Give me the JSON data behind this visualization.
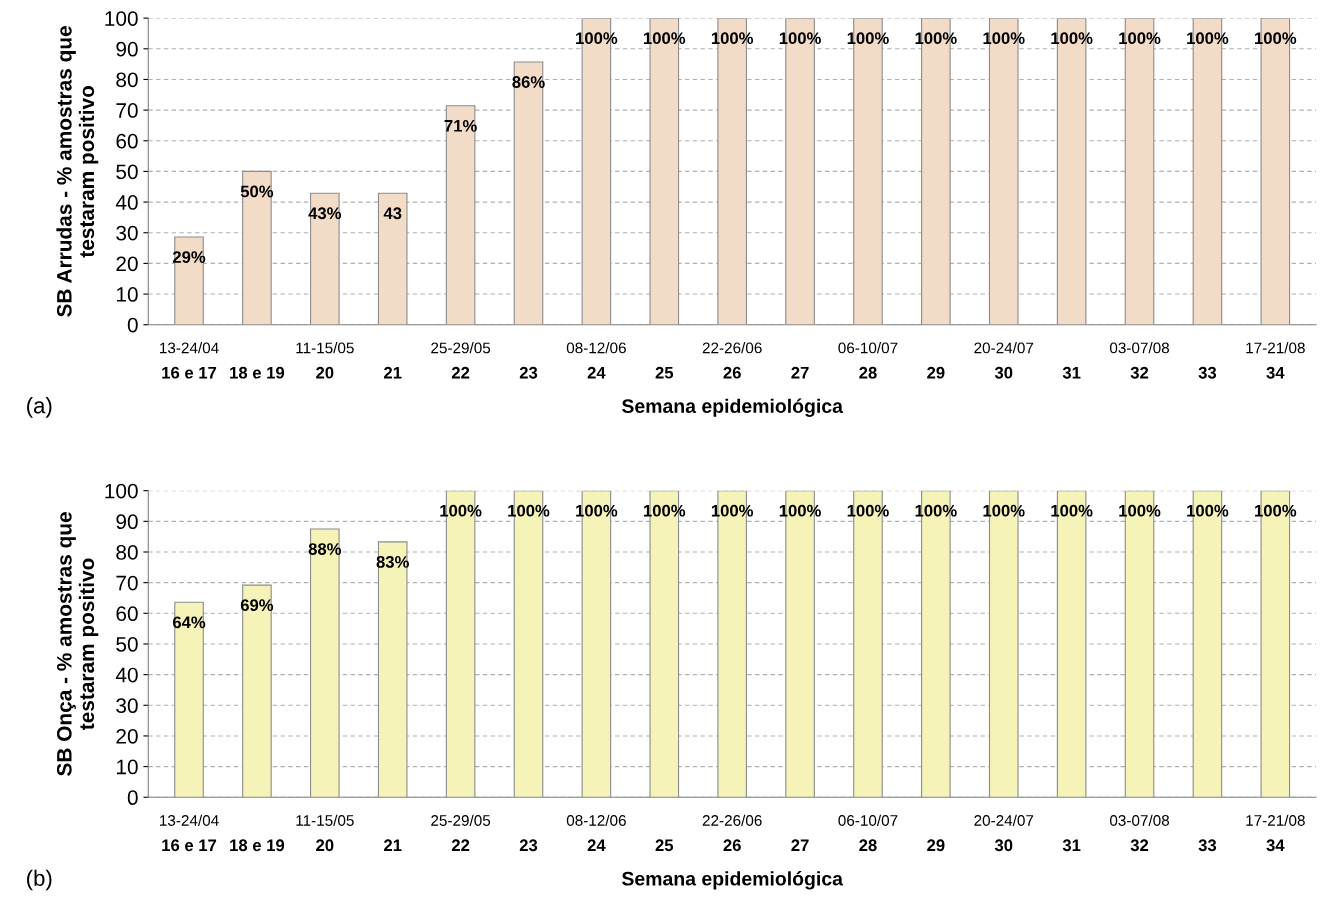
{
  "chart_data": [
    {
      "type": "bar",
      "ylabel": "SB Arrudas - % amostras que\ntestaram positivo",
      "xlabel": "Semana epidemiológica",
      "categories": [
        "16 e 17",
        "18 e 19",
        "20",
        "21",
        "22",
        "23",
        "24",
        "25",
        "26",
        "27",
        "28",
        "29",
        "30",
        "31",
        "32",
        "33",
        "34"
      ],
      "values": [
        28.6,
        50,
        42.9,
        42.9,
        71.4,
        85.7,
        100,
        100,
        100,
        100,
        100,
        100,
        100,
        100,
        100,
        100,
        100
      ],
      "value_labels": [
        "29%",
        "50%",
        "43%",
        "43",
        "71%",
        "86%",
        "100%",
        "100%",
        "100%",
        "100%",
        "100%",
        "100%",
        "100%",
        "100%",
        "100%",
        "100%",
        "100%"
      ],
      "color": "#f2dcc8",
      "ylim": [
        0,
        100
      ],
      "yticks": [
        0,
        10,
        20,
        30,
        40,
        50,
        60,
        70,
        80,
        90,
        100
      ],
      "grid": "y",
      "annotations": [
        "(a)",
        "13-24/04",
        "11-15/05",
        "25-29/05",
        "08-12/06",
        "22-26/06",
        "06-10/07",
        "20-24/07",
        "03-07/08",
        "17-21/08"
      ]
    },
    {
      "type": "bar",
      "ylabel": "SB Onça - % amostras que\ntestaram positivo",
      "xlabel": "Semana epidemiológica",
      "categories": [
        "16 e 17",
        "18 e 19",
        "20",
        "21",
        "22",
        "23",
        "24",
        "25",
        "26",
        "27",
        "28",
        "29",
        "30",
        "31",
        "32",
        "33",
        "34"
      ],
      "values": [
        63.6,
        69.2,
        87.5,
        83.3,
        100,
        100,
        100,
        100,
        100,
        100,
        100,
        100,
        100,
        100,
        100,
        100,
        100
      ],
      "value_labels": [
        "64%",
        "69%",
        "88%",
        "83%",
        "100%",
        "100%",
        "100%",
        "100%",
        "100%",
        "100%",
        "100%",
        "100%",
        "100%",
        "100%",
        "100%",
        "100%",
        "100%"
      ],
      "color": "#f5f3b8",
      "ylim": [
        0,
        100
      ],
      "yticks": [
        0,
        10,
        20,
        30,
        40,
        50,
        60,
        70,
        80,
        90,
        100
      ],
      "grid": "y",
      "annotations": [
        "(b)",
        "13-24/04",
        "11-15/05",
        "25-29/05",
        "08-12/06",
        "22-26/06",
        "06-10/07",
        "20-24/07",
        "03-07/08",
        "17-21/08"
      ]
    }
  ]
}
